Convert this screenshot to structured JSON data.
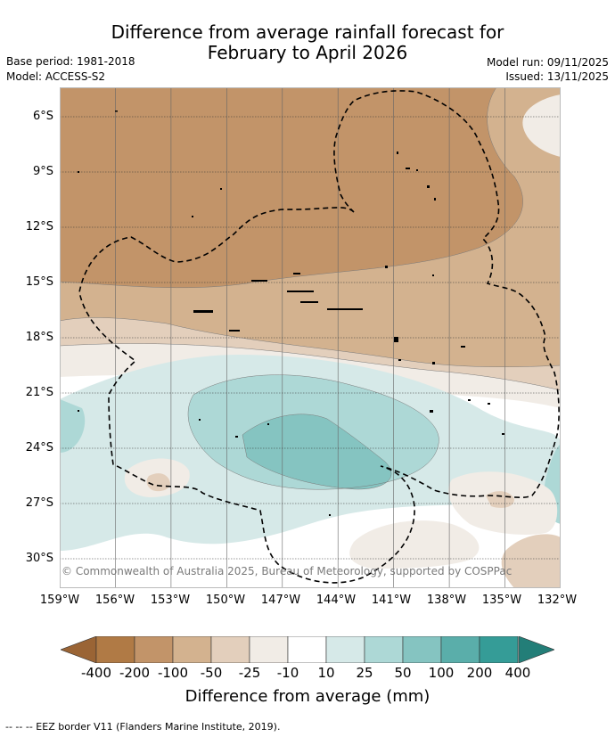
{
  "title": {
    "line1": "Difference from average rainfall forecast for",
    "line2": "February to April 2026"
  },
  "meta": {
    "base_period": "Base period: 1981-2018",
    "model": "Model: ACCESS-S2",
    "model_run": "Model run: 09/11/2025",
    "issued": "Issued: 13/11/2025"
  },
  "axes": {
    "lat_labels": [
      "6°S",
      "9°S",
      "12°S",
      "15°S",
      "18°S",
      "21°S",
      "24°S",
      "27°S",
      "30°S"
    ],
    "lon_labels": [
      "159°W",
      "156°W",
      "153°W",
      "150°W",
      "147°W",
      "144°W",
      "141°W",
      "138°W",
      "135°W",
      "132°W"
    ]
  },
  "colorbar": {
    "labels": [
      "-400",
      "-200",
      "-100",
      "-50",
      "-25",
      "-10",
      "10",
      "25",
      "50",
      "100",
      "200",
      "400"
    ],
    "colors": [
      "#b07a45",
      "#c29469",
      "#d3b28f",
      "#e3cfbc",
      "#f1ece6",
      "#ffffff",
      "#d6e9e8",
      "#add8d6",
      "#85c4c1",
      "#5aaeaa",
      "#359c97"
    ],
    "extend_low_color": "#9a6435",
    "extend_high_color": "#237e78",
    "title": "Difference from average (mm)"
  },
  "copyright": "© Commonwealth of Australia 2025, Bureau of Meteorology, supported by COSPPac",
  "footer": "-- -- -- EEZ border V11 (Flanders Marine Institute, 2019)."
}
